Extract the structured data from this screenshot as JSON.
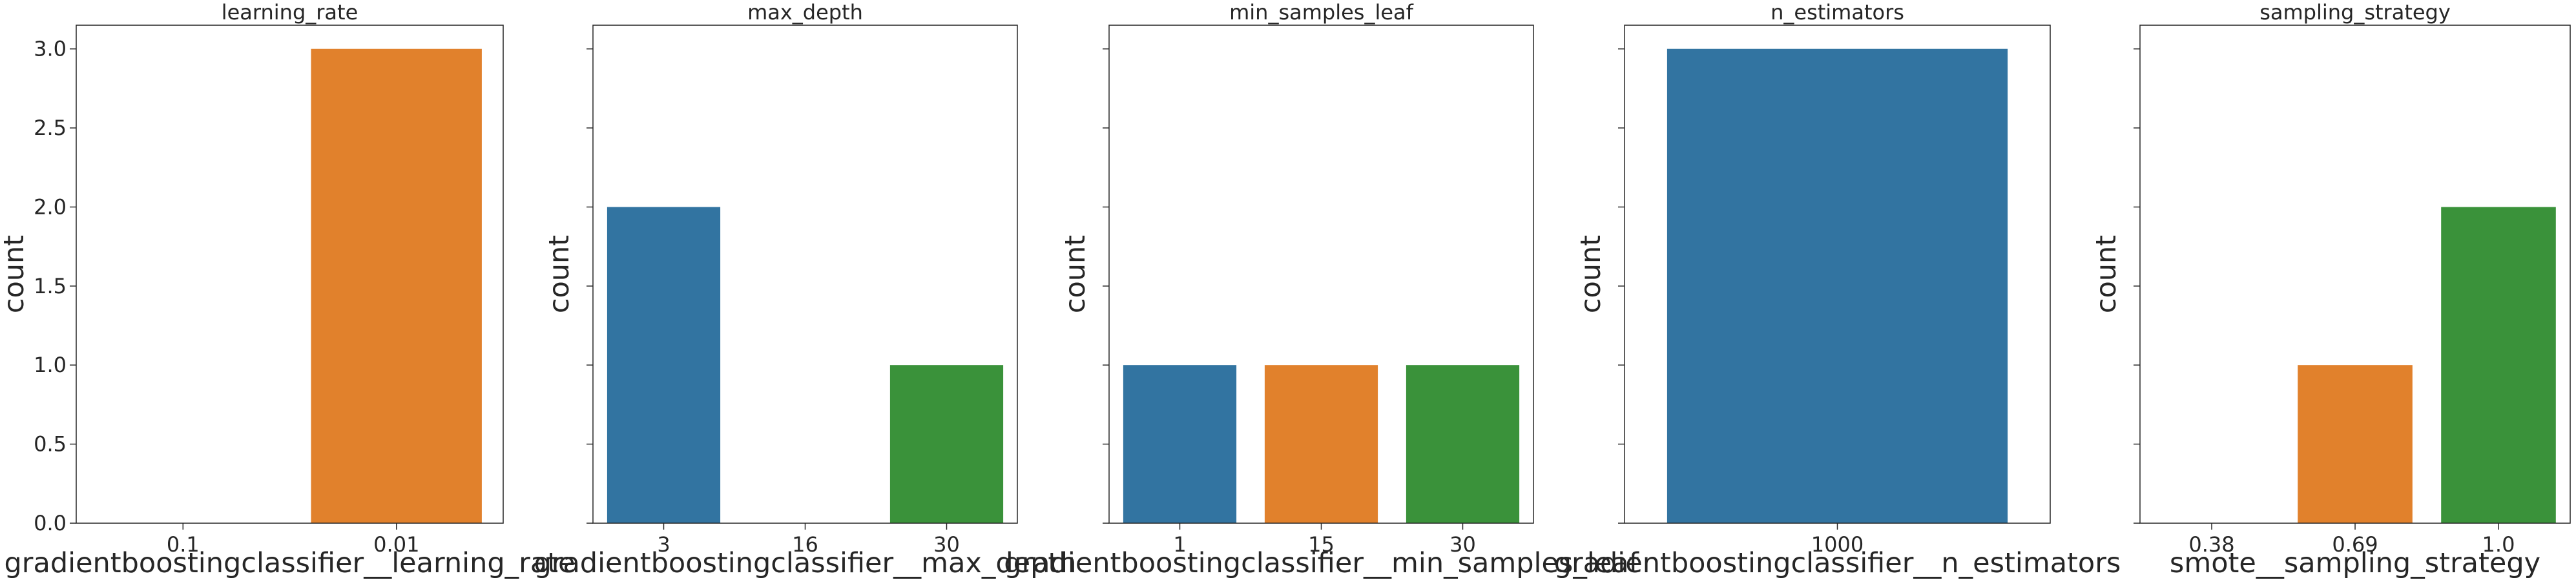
{
  "figure": {
    "background": "#ffffff",
    "axes_color": "#262626",
    "palette": [
      "#3274a1",
      "#e1812c",
      "#3a923a"
    ]
  },
  "chart_data": [
    {
      "type": "bar",
      "title": "learning_rate",
      "xlabel": "gradientboostingclassifier__learning_rate",
      "ylabel": "count",
      "categories": [
        "0.1",
        "0.01"
      ],
      "values": [
        0,
        3
      ],
      "colors": [
        "#3274a1",
        "#e1812c"
      ],
      "ylim": [
        0,
        3.15
      ],
      "yticks": [
        "0.0",
        "0.5",
        "1.0",
        "1.5",
        "2.0",
        "2.5",
        "3.0"
      ],
      "show_ytick_labels": true,
      "grid": false
    },
    {
      "type": "bar",
      "title": "max_depth",
      "xlabel": "gradientboostingclassifier__max_depth",
      "ylabel": "count",
      "categories": [
        "3",
        "16",
        "30"
      ],
      "values": [
        2,
        0,
        1
      ],
      "colors": [
        "#3274a1",
        "#e1812c",
        "#3a923a"
      ],
      "ylim": [
        0,
        3.15
      ],
      "show_ytick_labels": false,
      "grid": false
    },
    {
      "type": "bar",
      "title": "min_samples_leaf",
      "xlabel": "gradientboostingclassifier__min_samples_leaf",
      "ylabel": "count",
      "categories": [
        "1",
        "15",
        "30"
      ],
      "values": [
        1,
        1,
        1
      ],
      "colors": [
        "#3274a1",
        "#e1812c",
        "#3a923a"
      ],
      "ylim": [
        0,
        3.15
      ],
      "show_ytick_labels": false,
      "grid": false
    },
    {
      "type": "bar",
      "title": "n_estimators",
      "xlabel": "gradientboostingclassifier__n_estimators",
      "ylabel": "count",
      "categories": [
        "1000"
      ],
      "values": [
        3
      ],
      "colors": [
        "#3274a1"
      ],
      "ylim": [
        0,
        3.15
      ],
      "show_ytick_labels": false,
      "grid": false
    },
    {
      "type": "bar",
      "title": "sampling_strategy",
      "xlabel": "smote__sampling_strategy",
      "ylabel": "count",
      "categories": [
        "0.38",
        "0.69",
        "1.0"
      ],
      "values": [
        0,
        1,
        2
      ],
      "colors": [
        "#3274a1",
        "#e1812c",
        "#3a923a"
      ],
      "ylim": [
        0,
        3.15
      ],
      "show_ytick_labels": false,
      "grid": false
    }
  ]
}
